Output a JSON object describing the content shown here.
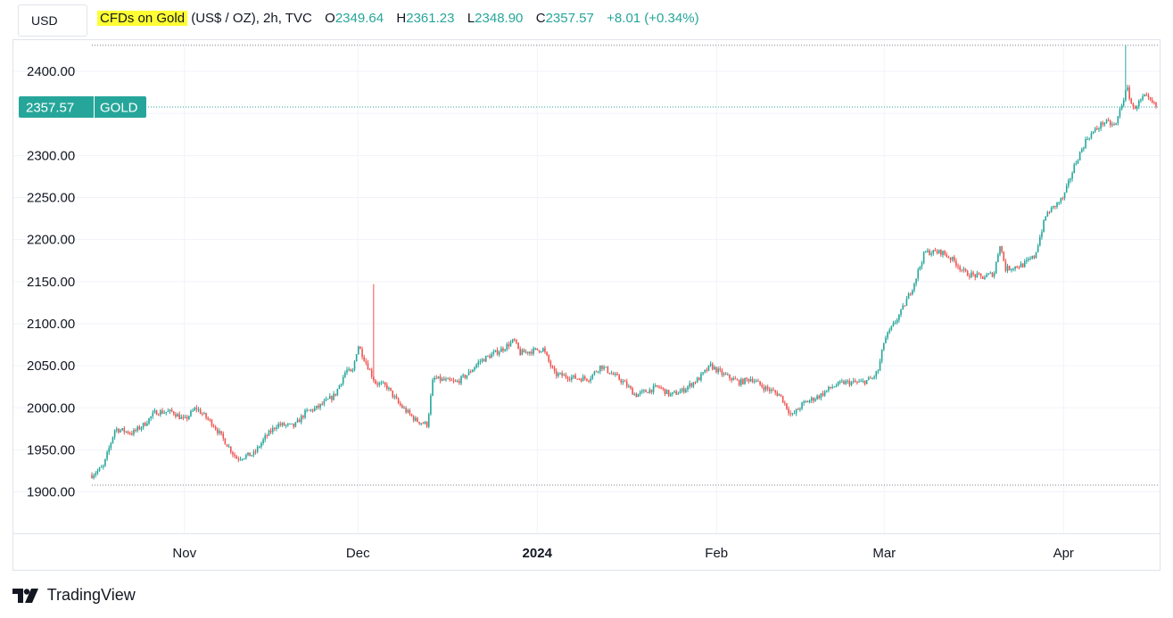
{
  "header": {
    "currency": "USD",
    "symbol_name": "CFDs on Gold",
    "symbol_meta": "(US$ / OZ), 2h, TVC",
    "o_label": "O",
    "o_value": "2349.64",
    "h_label": "H",
    "h_value": "2361.23",
    "l_label": "L",
    "l_value": "2348.90",
    "c_label": "C",
    "c_value": "2357.57",
    "change": "+8.01 (+0.34%)"
  },
  "price_tag": {
    "price": "2357.57",
    "symbol": "GOLD"
  },
  "footer": {
    "brand": "TradingView"
  },
  "colors": {
    "up": "#26a69a",
    "down": "#ef5350",
    "grid": "#f0f3fa",
    "axis": "#e0e3eb",
    "highlight": "#ffff33"
  },
  "chart_data": {
    "type": "candlestick",
    "ylim": [
      1855,
      2435
    ],
    "yticks": [
      1900,
      1950,
      2000,
      2050,
      2100,
      2150,
      2200,
      2250,
      2300,
      2350,
      2400
    ],
    "ytick_labels": [
      "1900.00",
      "1950.00",
      "2000.00",
      "2050.00",
      "2100.00",
      "2150.00",
      "2200.00",
      "2250.00",
      "2300.00",
      "",
      "2400.00"
    ],
    "x_range": [
      "2023-10-16",
      "2024-04-17"
    ],
    "xticks": [
      {
        "date": "2023-11-01",
        "label": "Nov",
        "bold": false
      },
      {
        "date": "2023-12-01",
        "label": "Dec",
        "bold": false
      },
      {
        "date": "2024-01-01",
        "label": "2024",
        "bold": true
      },
      {
        "date": "2024-02-01",
        "label": "Feb",
        "bold": false
      },
      {
        "date": "2024-03-01",
        "label": "Mar",
        "bold": false
      },
      {
        "date": "2024-04-01",
        "label": "Apr",
        "bold": false
      }
    ],
    "high_line": 2431,
    "low_line": 1908,
    "last_price": 2357.57,
    "path": [
      [
        "2023-10-16",
        1920
      ],
      [
        "2023-10-18",
        1930
      ],
      [
        "2023-10-20",
        1975
      ],
      [
        "2023-10-23",
        1970
      ],
      [
        "2023-10-25",
        1980
      ],
      [
        "2023-10-27",
        1995
      ],
      [
        "2023-10-30",
        1995
      ],
      [
        "2023-11-01",
        1985
      ],
      [
        "2023-11-03",
        2000
      ],
      [
        "2023-11-06",
        1980
      ],
      [
        "2023-11-08",
        1960
      ],
      [
        "2023-11-10",
        1940
      ],
      [
        "2023-11-13",
        1945
      ],
      [
        "2023-11-15",
        1965
      ],
      [
        "2023-11-17",
        1980
      ],
      [
        "2023-11-20",
        1978
      ],
      [
        "2023-11-22",
        1995
      ],
      [
        "2023-11-24",
        2000
      ],
      [
        "2023-11-27",
        2015
      ],
      [
        "2023-11-29",
        2045
      ],
      [
        "2023-11-30",
        2040
      ],
      [
        "2023-12-01",
        2075
      ],
      [
        "2023-12-04",
        2030
      ],
      [
        "2023-12-06",
        2025
      ],
      [
        "2023-12-08",
        2005
      ],
      [
        "2023-12-11",
        1985
      ],
      [
        "2023-12-13",
        1980
      ],
      [
        "2023-12-14",
        2035
      ],
      [
        "2023-12-18",
        2030
      ],
      [
        "2023-12-20",
        2040
      ],
      [
        "2023-12-22",
        2055
      ],
      [
        "2023-12-26",
        2070
      ],
      [
        "2023-12-28",
        2080
      ],
      [
        "2023-12-29",
        2065
      ],
      [
        "2024-01-02",
        2070
      ],
      [
        "2024-01-04",
        2040
      ],
      [
        "2024-01-08",
        2035
      ],
      [
        "2024-01-10",
        2035
      ],
      [
        "2024-01-12",
        2050
      ],
      [
        "2024-01-16",
        2030
      ],
      [
        "2024-01-18",
        2015
      ],
      [
        "2024-01-22",
        2025
      ],
      [
        "2024-01-24",
        2015
      ],
      [
        "2024-01-26",
        2020
      ],
      [
        "2024-01-29",
        2035
      ],
      [
        "2024-01-31",
        2050
      ],
      [
        "2024-02-02",
        2040
      ],
      [
        "2024-02-05",
        2030
      ],
      [
        "2024-02-07",
        2035
      ],
      [
        "2024-02-09",
        2025
      ],
      [
        "2024-02-12",
        2015
      ],
      [
        "2024-02-14",
        1990
      ],
      [
        "2024-02-16",
        2005
      ],
      [
        "2024-02-19",
        2015
      ],
      [
        "2024-02-21",
        2025
      ],
      [
        "2024-02-23",
        2030
      ],
      [
        "2024-02-26",
        2030
      ],
      [
        "2024-02-28",
        2035
      ],
      [
        "2024-02-29",
        2045
      ],
      [
        "2024-03-01",
        2080
      ],
      [
        "2024-03-04",
        2115
      ],
      [
        "2024-03-06",
        2145
      ],
      [
        "2024-03-08",
        2185
      ],
      [
        "2024-03-11",
        2185
      ],
      [
        "2024-03-13",
        2175
      ],
      [
        "2024-03-15",
        2160
      ],
      [
        "2024-03-18",
        2155
      ],
      [
        "2024-03-20",
        2160
      ],
      [
        "2024-03-21",
        2195
      ],
      [
        "2024-03-22",
        2165
      ],
      [
        "2024-03-25",
        2170
      ],
      [
        "2024-03-27",
        2180
      ],
      [
        "2024-03-29",
        2230
      ],
      [
        "2024-04-01",
        2250
      ],
      [
        "2024-04-03",
        2290
      ],
      [
        "2024-04-05",
        2320
      ],
      [
        "2024-04-08",
        2340
      ],
      [
        "2024-04-10",
        2335
      ],
      [
        "2024-04-11",
        2360
      ],
      [
        "2024-04-12",
        2380
      ],
      [
        "2024-04-13",
        2355
      ],
      [
        "2024-04-15",
        2370
      ],
      [
        "2024-04-17",
        2358
      ]
    ],
    "spikes": [
      {
        "date": "2023-12-04",
        "high": 2147
      },
      {
        "date": "2024-04-12",
        "high": 2431
      }
    ]
  }
}
